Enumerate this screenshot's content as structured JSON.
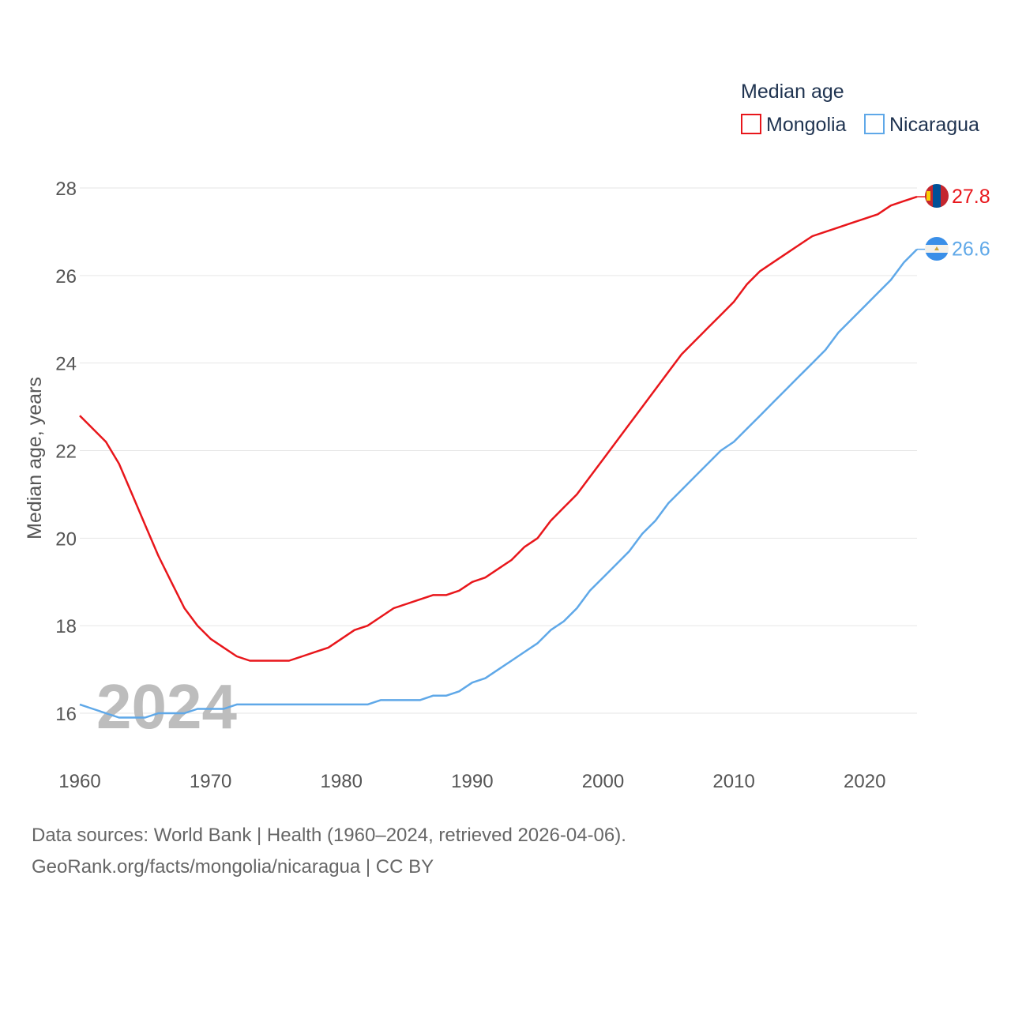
{
  "chart_data": {
    "type": "line",
    "title": "Median age",
    "ylabel": "Median age, years",
    "xlabel": "",
    "ylim": [
      15,
      28.5
    ],
    "xlim": [
      1960,
      2024
    ],
    "yticks": [
      16,
      18,
      20,
      22,
      24,
      26,
      28
    ],
    "xticks": [
      1960,
      1970,
      1980,
      1990,
      2000,
      2010,
      2020
    ],
    "ytick_labels": [
      "16",
      "18",
      "20",
      "22",
      "24",
      "26",
      "28"
    ],
    "xtick_labels": [
      "1960",
      "1970",
      "1980",
      "1990",
      "2000",
      "2010",
      "2020"
    ],
    "current_year": "2024",
    "grid": true,
    "legend_position": "top-right",
    "series": [
      {
        "name": "Mongolia",
        "color": "#e8161b",
        "final_label": "27.8",
        "x": [
          1960,
          1962,
          1963,
          1964,
          1965,
          1966,
          1967,
          1968,
          1969,
          1970,
          1971,
          1972,
          1973,
          1974,
          1975,
          1976,
          1977,
          1978,
          1979,
          1980,
          1981,
          1982,
          1983,
          1984,
          1985,
          1986,
          1987,
          1988,
          1989,
          1990,
          1991,
          1992,
          1993,
          1994,
          1995,
          1996,
          1997,
          1998,
          1999,
          2000,
          2001,
          2002,
          2003,
          2004,
          2005,
          2006,
          2007,
          2008,
          2009,
          2010,
          2011,
          2012,
          2013,
          2014,
          2015,
          2016,
          2017,
          2018,
          2019,
          2020,
          2021,
          2022,
          2023,
          2024
        ],
        "values": [
          22.8,
          22.2,
          21.7,
          21.0,
          20.3,
          19.6,
          19.0,
          18.4,
          18.0,
          17.7,
          17.5,
          17.3,
          17.2,
          17.2,
          17.2,
          17.2,
          17.3,
          17.4,
          17.5,
          17.7,
          17.9,
          18.0,
          18.2,
          18.4,
          18.5,
          18.6,
          18.7,
          18.7,
          18.8,
          19.0,
          19.1,
          19.3,
          19.5,
          19.8,
          20.0,
          20.4,
          20.7,
          21.0,
          21.4,
          21.8,
          22.2,
          22.6,
          23.0,
          23.4,
          23.8,
          24.2,
          24.5,
          24.8,
          25.1,
          25.4,
          25.8,
          26.1,
          26.3,
          26.5,
          26.7,
          26.9,
          27.0,
          27.1,
          27.2,
          27.3,
          27.4,
          27.6,
          27.7,
          27.8
        ]
      },
      {
        "name": "Nicaragua",
        "color": "#5fa8e8",
        "final_label": "26.6",
        "x": [
          1960,
          1961,
          1962,
          1963,
          1964,
          1965,
          1966,
          1967,
          1968,
          1969,
          1970,
          1971,
          1972,
          1973,
          1974,
          1975,
          1976,
          1977,
          1978,
          1979,
          1980,
          1981,
          1982,
          1983,
          1984,
          1985,
          1986,
          1987,
          1988,
          1989,
          1990,
          1991,
          1992,
          1993,
          1994,
          1995,
          1996,
          1997,
          1998,
          1999,
          2000,
          2001,
          2002,
          2003,
          2004,
          2005,
          2006,
          2007,
          2008,
          2009,
          2010,
          2011,
          2012,
          2013,
          2014,
          2015,
          2016,
          2017,
          2018,
          2019,
          2020,
          2021,
          2022,
          2023,
          2024
        ],
        "values": [
          16.2,
          16.1,
          16.0,
          15.9,
          15.9,
          15.9,
          16.0,
          16.0,
          16.0,
          16.1,
          16.1,
          16.1,
          16.2,
          16.2,
          16.2,
          16.2,
          16.2,
          16.2,
          16.2,
          16.2,
          16.2,
          16.2,
          16.2,
          16.3,
          16.3,
          16.3,
          16.3,
          16.4,
          16.4,
          16.5,
          16.7,
          16.8,
          17.0,
          17.2,
          17.4,
          17.6,
          17.9,
          18.1,
          18.4,
          18.8,
          19.1,
          19.4,
          19.7,
          20.1,
          20.4,
          20.8,
          21.1,
          21.4,
          21.7,
          22.0,
          22.2,
          22.5,
          22.8,
          23.1,
          23.4,
          23.7,
          24.0,
          24.3,
          24.7,
          25.0,
          25.3,
          25.6,
          25.9,
          26.3,
          26.6
        ]
      }
    ]
  },
  "footer": {
    "line1": "Data sources: World Bank | Health (1960–2024, retrieved 2026-04-06).",
    "line2": "GeoRank.org/facts/mongolia/nicaragua | CC BY"
  }
}
